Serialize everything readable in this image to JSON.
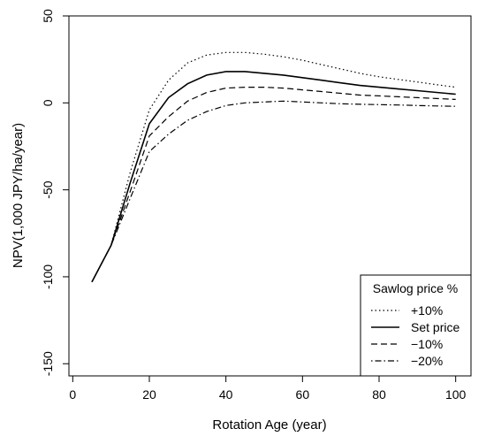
{
  "chart_data": {
    "type": "line",
    "title": "",
    "xlabel": "Rotation Age (year)",
    "ylabel": "NPV(1,000 JPY/ha/year)",
    "xlim": [
      -1,
      104
    ],
    "ylim": [
      -157,
      50
    ],
    "xticks": [
      0,
      20,
      40,
      60,
      80,
      100
    ],
    "yticks": [
      -150,
      -100,
      -50,
      0,
      50
    ],
    "grid": false,
    "legend": {
      "title": "Sawlog price %",
      "position": "bottom-right"
    },
    "series": [
      {
        "name": "+10%",
        "dash": "dotted",
        "x": [
          5,
          10,
          15,
          20,
          25,
          30,
          35,
          40,
          45,
          50,
          55,
          60,
          65,
          70,
          75,
          80,
          85,
          90,
          95,
          100
        ],
        "y": [
          -103,
          -82,
          -40,
          -4,
          13,
          23,
          27.5,
          29,
          29,
          28,
          26.5,
          24.5,
          22,
          19.5,
          17,
          15,
          13.5,
          12,
          10.5,
          9
        ]
      },
      {
        "name": "Set price",
        "dash": "solid",
        "x": [
          5,
          10,
          15,
          20,
          25,
          30,
          35,
          40,
          45,
          50,
          55,
          60,
          65,
          70,
          75,
          80,
          85,
          90,
          95,
          100
        ],
        "y": [
          -103,
          -82,
          -46,
          -12,
          3,
          11,
          16,
          18,
          18,
          17,
          16,
          14.5,
          13,
          11.5,
          10,
          9,
          8,
          7,
          6,
          5
        ]
      },
      {
        "name": "−10%",
        "dash": "dashed",
        "x": [
          5,
          10,
          15,
          20,
          25,
          30,
          35,
          40,
          45,
          50,
          55,
          60,
          65,
          70,
          75,
          80,
          85,
          90,
          95,
          100
        ],
        "y": [
          -103,
          -82,
          -51,
          -19,
          -8,
          1,
          6,
          8.5,
          9,
          9,
          8.5,
          7.5,
          6.5,
          5.5,
          4.5,
          4,
          3.5,
          3,
          2.5,
          2
        ]
      },
      {
        "name": "−20%",
        "dash": "dotdash",
        "x": [
          5,
          10,
          15,
          20,
          25,
          30,
          35,
          40,
          45,
          50,
          55,
          60,
          65,
          70,
          75,
          80,
          85,
          90,
          95,
          100
        ],
        "y": [
          -103,
          -82,
          -55,
          -28,
          -18,
          -10,
          -5,
          -1.5,
          0,
          0.5,
          1,
          0.5,
          0,
          -0.5,
          -0.8,
          -1,
          -1.2,
          -1.5,
          -1.8,
          -2
        ]
      }
    ]
  }
}
